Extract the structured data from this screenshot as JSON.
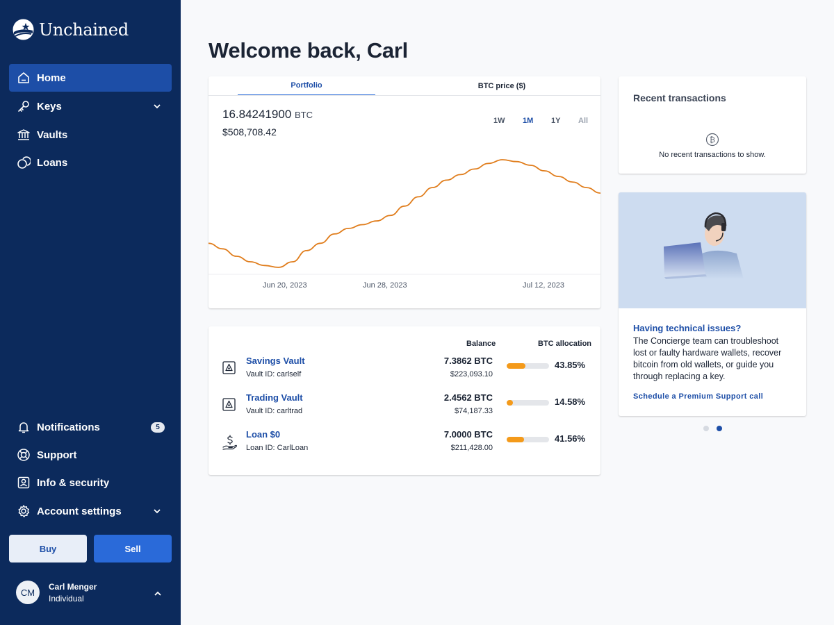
{
  "sidebar": {
    "logo_text": "Unchained",
    "nav": [
      {
        "label": "Home"
      },
      {
        "label": "Keys"
      },
      {
        "label": "Vaults"
      },
      {
        "label": "Loans"
      }
    ],
    "bottom_nav": [
      {
        "label": "Notifications",
        "badge": "5"
      },
      {
        "label": "Support"
      },
      {
        "label": "Info & security"
      },
      {
        "label": "Account settings"
      }
    ],
    "buy_label": "Buy",
    "sell_label": "Sell",
    "user": {
      "initials": "CM",
      "name": "Carl Menger",
      "role": "Individual"
    }
  },
  "main": {
    "title": "Welcome back, Carl",
    "chart_card": {
      "tabs": [
        "Portfolio",
        "BTC price ($)"
      ],
      "btc_amount": "16.84241900",
      "btc_unit": "BTC",
      "usd_amount": "$508,708.42",
      "ranges": [
        "1W",
        "1M",
        "1Y",
        "All"
      ],
      "x_ticks": [
        "Jun 20, 2023",
        "Jun 28, 2023",
        "Jul 12, 2023"
      ]
    },
    "vaults": {
      "headers": {
        "balance": "Balance",
        "allocation": "BTC allocation"
      },
      "rows": [
        {
          "name": "Savings Vault",
          "id": "Vault ID: carlself",
          "btc": "7.3862 BTC",
          "usd": "$223,093.10",
          "pct": "43.85%",
          "alloc": 0.4385
        },
        {
          "name": "Trading Vault",
          "id": "Vault ID: carltrad",
          "btc": "2.4562 BTC",
          "usd": "$74,187.33",
          "pct": "14.58%",
          "alloc": 0.1458
        },
        {
          "name": "Loan $0",
          "id": "Loan ID: CarlLoan",
          "btc": "7.0000 BTC",
          "usd": "$211,428.00",
          "pct": "41.56%",
          "alloc": 0.4156
        }
      ]
    },
    "transactions": {
      "title": "Recent transactions",
      "empty": "No recent transactions to show."
    },
    "support": {
      "heading": "Having technical issues?",
      "body": "The Concierge team can troubleshoot lost or faulty hardware wallets, recover bitcoin from old wallets, or guide you through replacing a key.",
      "link": "Schedule a Premium Support call"
    }
  },
  "colors": {
    "sidebar": "#0c2a5c",
    "accent": "#1d4ea7",
    "chart_line": "#e07d1c",
    "alloc_bar": "#f49a1a"
  },
  "chart_data": {
    "type": "line",
    "series": [
      {
        "values": [
          1.0,
          0.97,
          0.93,
          0.9,
          0.88,
          0.87,
          0.9,
          0.96,
          1.0,
          1.05,
          1.08,
          1.1,
          1.12,
          1.15,
          1.2,
          1.25,
          1.3,
          1.34,
          1.37,
          1.4,
          1.43,
          1.45,
          1.44,
          1.42,
          1.39,
          1.36,
          1.33,
          1.3,
          1.27
        ]
      }
    ],
    "x_ticks": [
      "Jun 20, 2023",
      "Jun 28, 2023",
      "Jul 12, 2023"
    ]
  }
}
